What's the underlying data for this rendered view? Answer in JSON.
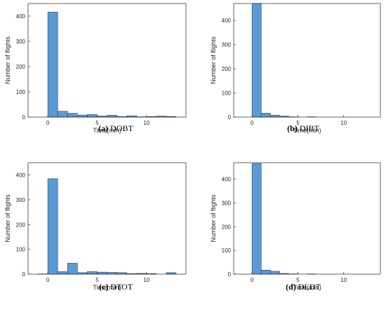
{
  "chart_data": [
    {
      "type": "bar",
      "caption_tag": "(a)",
      "caption_name": "DOBT",
      "xlabel": "Time(min)",
      "ylabel": "Number of flights",
      "xlim": [
        -2,
        14
      ],
      "ylim": [
        0,
        450
      ],
      "xticks": [
        0,
        5,
        10
      ],
      "yticks": [
        0,
        100,
        200,
        300,
        400
      ],
      "bin_width": 1,
      "bins": [
        0,
        1,
        2,
        3,
        4,
        5,
        6,
        7,
        8,
        9,
        10,
        11,
        12
      ],
      "values": [
        416,
        23,
        15,
        8,
        10,
        4,
        7,
        2,
        5,
        1,
        2,
        4,
        2
      ]
    },
    {
      "type": "bar",
      "caption_tag": "(b)",
      "caption_name": "DIBT",
      "xlabel": "Time(min)",
      "ylabel": "Number of flights",
      "xlim": [
        -2,
        14
      ],
      "ylim": [
        0,
        470
      ],
      "xticks": [
        0,
        5,
        10
      ],
      "yticks": [
        0,
        100,
        200,
        300,
        400
      ],
      "bin_width": 1,
      "bins": [
        0,
        1,
        2,
        3,
        4,
        5,
        6
      ],
      "values": [
        470,
        16,
        8,
        4,
        1,
        0,
        1
      ]
    },
    {
      "type": "bar",
      "caption_tag": "(c)",
      "caption_name": "DTOT",
      "xlabel": "Time(min)",
      "ylabel": "Number of flights",
      "xlim": [
        -2,
        14
      ],
      "ylim": [
        0,
        450
      ],
      "xticks": [
        0,
        5,
        10
      ],
      "yticks": [
        0,
        100,
        200,
        300,
        400
      ],
      "bin_width": 1,
      "bins": [
        -1,
        0,
        1,
        2,
        3,
        4,
        5,
        6,
        7,
        8,
        9,
        10,
        12
      ],
      "values": [
        1,
        385,
        10,
        44,
        6,
        10,
        8,
        7,
        6,
        2,
        3,
        2,
        6
      ]
    },
    {
      "type": "bar",
      "caption_tag": "(d)",
      "caption_name": "DLDT",
      "xlabel": "Time(min)",
      "ylabel": "Number of flights",
      "xlim": [
        -2,
        14
      ],
      "ylim": [
        0,
        470
      ],
      "xticks": [
        0,
        5,
        10
      ],
      "yticks": [
        0,
        100,
        200,
        300,
        400
      ],
      "bin_width": 1,
      "bins": [
        0,
        1,
        2,
        3,
        4,
        5,
        6
      ],
      "values": [
        466,
        17,
        12,
        3,
        1,
        0,
        1
      ]
    }
  ],
  "colors": {
    "bar_fill": "#5b9bd5",
    "bar_edge": "#1f3d5c",
    "axis": "#262626"
  }
}
